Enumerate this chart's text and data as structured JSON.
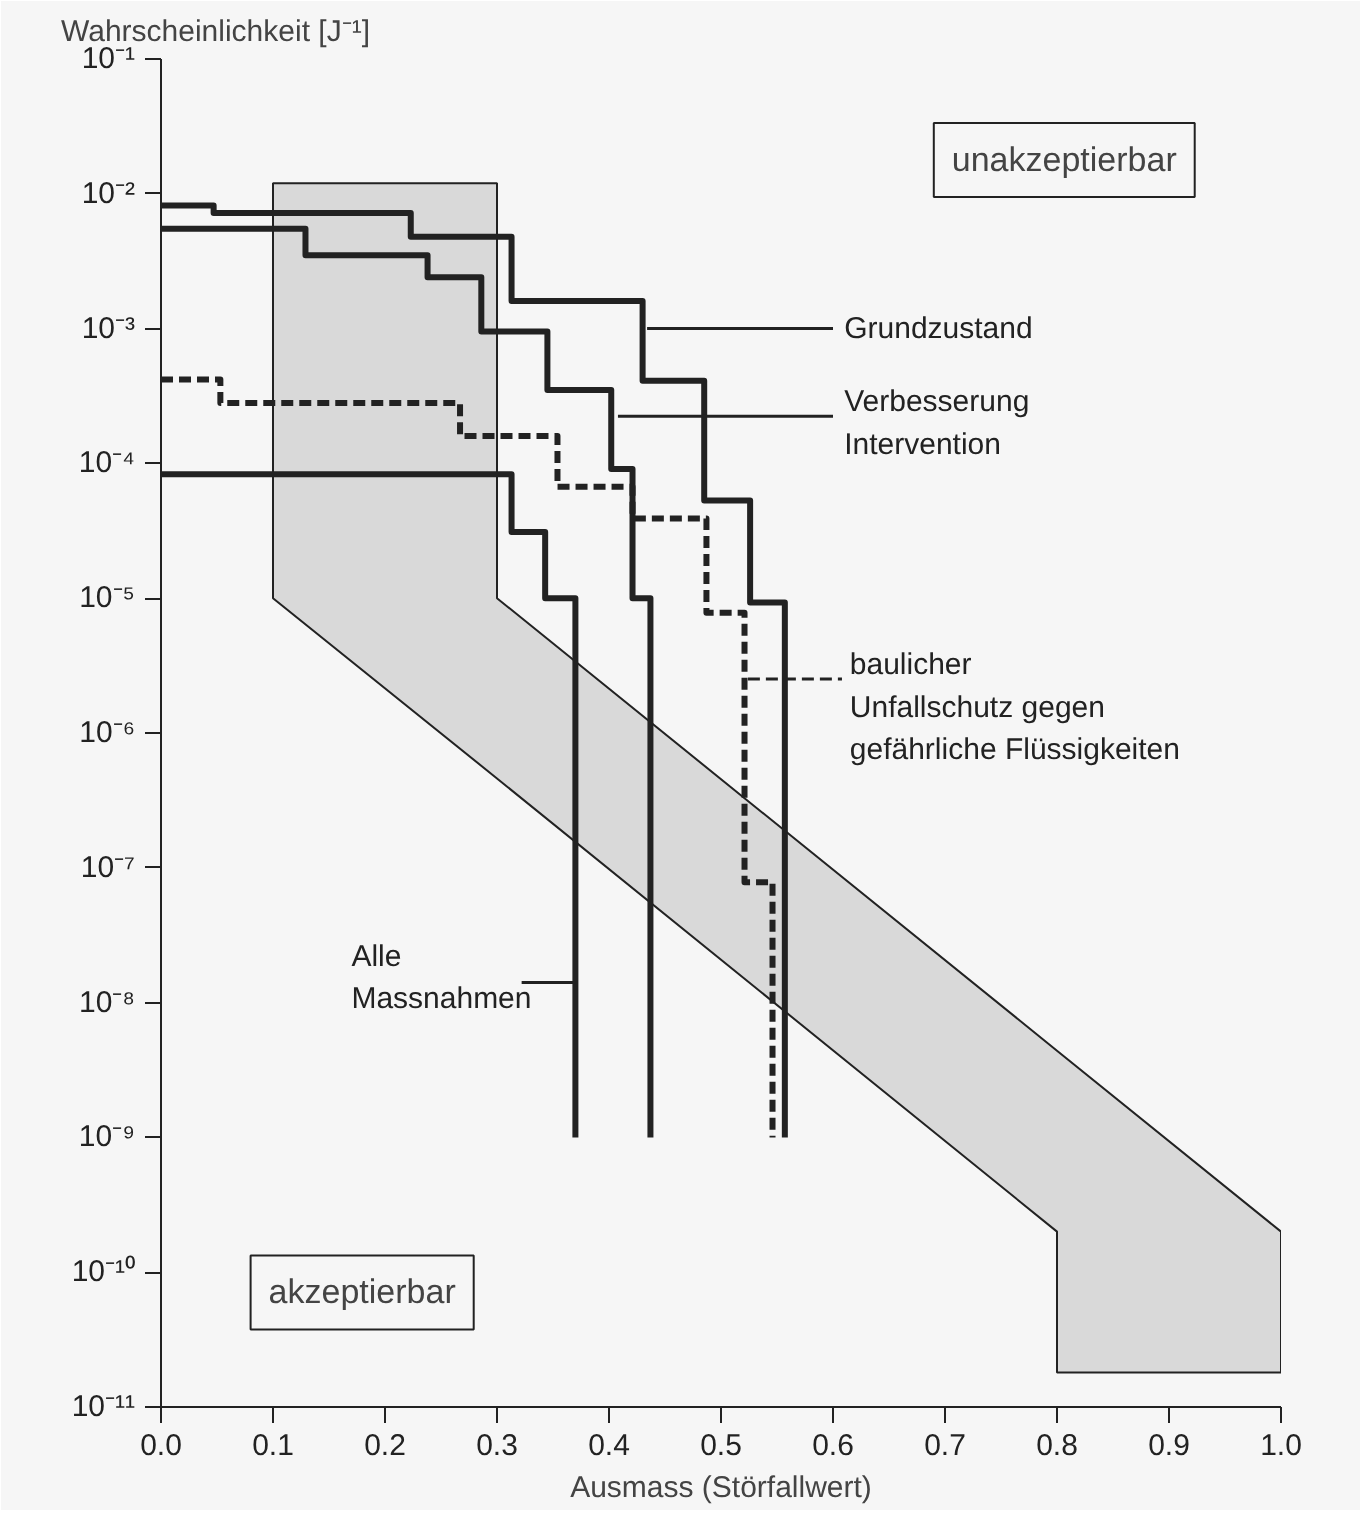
{
  "chart_data": {
    "type": "step",
    "xlabel": "Ausmass (Störfallwert)",
    "ylabel": "Wahrscheinlichkeit [J⁻¹]",
    "log": "y",
    "xlim": [
      0,
      1.0
    ],
    "xticks": [
      {
        "value": 0,
        "label": "0.0"
      },
      {
        "value": 0.1,
        "label": "0.1"
      },
      {
        "value": 0.2,
        "label": "0.2"
      },
      {
        "value": 0.3,
        "label": "0.3"
      },
      {
        "value": 0.4,
        "label": "0.4"
      },
      {
        "value": 0.5,
        "label": "0.5"
      },
      {
        "value": 0.6,
        "label": "0.6"
      },
      {
        "value": 0.7,
        "label": "0.7"
      },
      {
        "value": 0.8,
        "label": "0.8"
      },
      {
        "value": 0.9,
        "label": "0.9"
      },
      {
        "value": 1.0,
        "label": "1.0"
      }
    ],
    "ylim": [
      1e-11,
      0.1
    ],
    "yticks": [
      {
        "value": 0.1,
        "label": "10⁻¹"
      },
      {
        "value": 0.01,
        "label": "10⁻²"
      },
      {
        "value": 0.001,
        "label": "10⁻³"
      },
      {
        "value": 0.0001,
        "label": "10⁻⁴"
      },
      {
        "value": 1e-05,
        "label": "10⁻⁵"
      },
      {
        "value": 1e-06,
        "label": "10⁻⁶"
      },
      {
        "value": 1e-07,
        "label": "10⁻⁷"
      },
      {
        "value": 1e-08,
        "label": "10⁻⁸"
      },
      {
        "value": 1e-09,
        "label": "10⁻⁹"
      },
      {
        "value": 1e-10,
        "label": "10⁻¹⁰"
      },
      {
        "value": 1e-11,
        "label": "10⁻¹¹"
      }
    ],
    "grid": false,
    "series": [
      {
        "type": "area",
        "color": "#d9d9d9",
        "x": [
          0.1,
          0.3,
          0.3,
          0.8,
          0.8,
          1.0
        ],
        "values": [
          null,
          null,
          null,
          null,
          null,
          null
        ],
        "upper": [
          0.012,
          0.012,
          1e-05,
          4.4e-09,
          4.4e-09,
          2e-10
        ],
        "lower": [
          1e-05,
          4.6e-07,
          4.6e-07,
          2e-10,
          1.8e-11,
          1.8e-11
        ]
      },
      {
        "name": "Grundzustand",
        "color": "#222222",
        "line_style": "solid",
        "x": [
          0,
          0.047,
          0.223,
          0.313,
          0.43,
          0.485,
          0.526,
          0.557
        ],
        "values": [
          0.0082,
          0.0072,
          0.0048,
          0.0016,
          0.00041,
          5.3e-05,
          9.3e-06,
          1e-09
        ]
      },
      {
        "name": "Verbesserung\nIntervention",
        "color": "#222222",
        "line_style": "solid",
        "x": [
          0,
          0.129,
          0.238,
          0.286,
          0.345,
          0.402,
          0.421,
          0.437
        ],
        "values": [
          0.0055,
          0.0035,
          0.0024,
          0.00095,
          0.00035,
          9.1e-05,
          1e-05,
          1e-09
        ]
      },
      {
        "name": "baulicher\nUnfallschutz gegen\ngefährliche Flüssigkeiten",
        "color": "#222222",
        "line_style": "dashed",
        "x": [
          0,
          0.053,
          0.267,
          0.354,
          0.421,
          0.487,
          0.521,
          0.546
        ],
        "values": [
          0.00042,
          0.00028,
          0.00016,
          6.7e-05,
          3.9e-05,
          7.8e-06,
          7.8e-08,
          1e-09
        ]
      },
      {
        "name": "Alle\nMassnahmen",
        "color": "#222222",
        "line_style": "solid",
        "x": [
          0,
          0.313,
          0.343,
          0.37
        ],
        "values": [
          8.3e-05,
          3.1e-05,
          1e-05,
          1e-09
        ]
      }
    ],
    "annotations": [
      "unakzeptierbar",
      "akzeptierbar"
    ]
  }
}
